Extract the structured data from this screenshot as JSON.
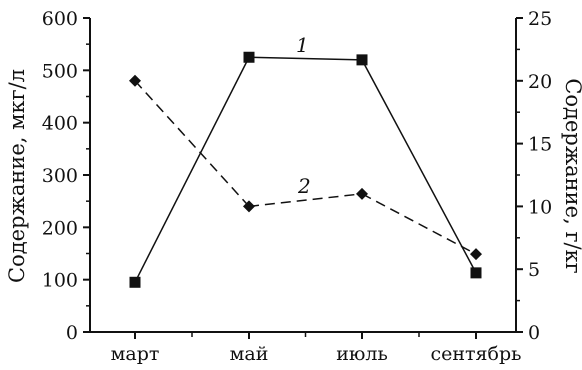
{
  "chart_data": {
    "type": "line",
    "categories": [
      "март",
      "май",
      "июль",
      "сентябрь"
    ],
    "y_left": {
      "label": "Содержание, мкг/л",
      "range": [
        0,
        600
      ],
      "ticks": [
        "0",
        "100",
        "200",
        "300",
        "400",
        "500",
        "600"
      ]
    },
    "y_right": {
      "label": "Содержание, г/кг",
      "range": [
        0,
        25
      ],
      "ticks": [
        "0",
        "5",
        "10",
        "15",
        "20",
        "25"
      ]
    },
    "series": [
      {
        "name": "1",
        "axis": "left",
        "values": [
          95,
          525,
          520,
          113
        ],
        "marker": "square",
        "line_style": "solid",
        "color": "#111111"
      },
      {
        "name": "2",
        "axis": "right",
        "values": [
          20,
          10,
          11,
          6.2
        ],
        "marker": "diamond",
        "line_style": "dashed",
        "color": "#111111"
      }
    ],
    "grid": false,
    "legend": "inline labels"
  }
}
